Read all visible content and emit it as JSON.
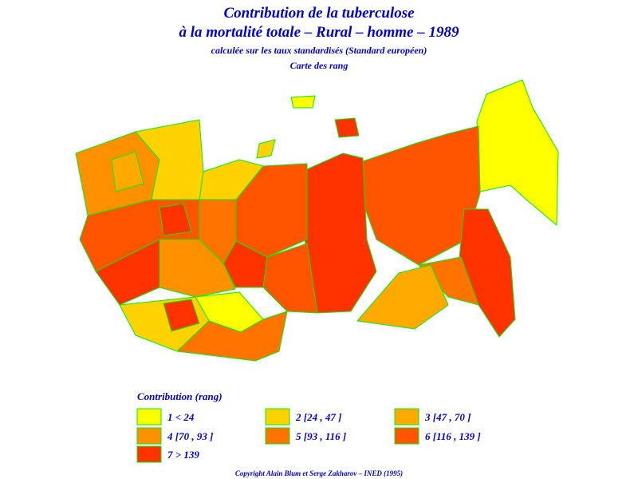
{
  "header": {
    "title": "Contribution de la tuberculose",
    "subtitle": "à la mortalité totale – Rural – homme – 1989",
    "note": "calculée sur les taux standardisés (Standard européen)",
    "map_title": "Carte des rang"
  },
  "legend": {
    "title": "Contribution (rang)",
    "items": [
      {
        "label": "1 < 24",
        "color": "#ffff00"
      },
      {
        "label": "2 [24 , 47 ]",
        "color": "#ffd200"
      },
      {
        "label": "3 [47 , 70 ]",
        "color": "#ffaa00"
      },
      {
        "label": "4 [70 , 93 ]",
        "color": "#ff9100"
      },
      {
        "label": "5 [93 , 116 ]",
        "color": "#ff7400"
      },
      {
        "label": "6 [116 , 139 ]",
        "color": "#ff5500"
      },
      {
        "label": "7 > 139",
        "color": "#ff3300"
      }
    ]
  },
  "footer": {
    "copyright": "Copyright Alain Blum et Serge Zakharov – INED (1995)"
  }
}
